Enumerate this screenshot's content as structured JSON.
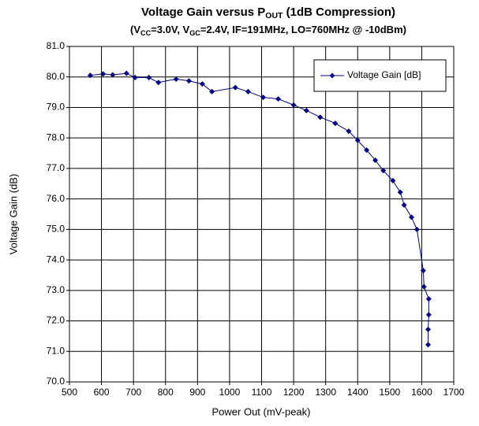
{
  "chart_data": {
    "type": "line",
    "title": [
      {
        "text": "Voltage Gain versus P"
      },
      {
        "text": "OUT",
        "sub": true
      },
      {
        "text": " (1dB Compression)"
      }
    ],
    "subtitle": [
      {
        "text": "(V"
      },
      {
        "text": "CC",
        "sub": true
      },
      {
        "text": "=3.0V, V"
      },
      {
        "text": "GC",
        "sub": true
      },
      {
        "text": "=2.4V, IF=191MHz, LO=760MHz @ -10dBm)"
      }
    ],
    "x_label": "Power Out (mV-peak)",
    "y_label": "Voltage Gain (dB)",
    "x": [
      565,
      605,
      635,
      678,
      705,
      748,
      778,
      833,
      873,
      915,
      945,
      1018,
      1058,
      1105,
      1152,
      1200,
      1240,
      1283,
      1330,
      1372,
      1400,
      1428,
      1455,
      1480,
      1510,
      1533,
      1545,
      1568,
      1585,
      1605,
      1607,
      1622,
      1622,
      1620,
      1620
    ],
    "series": [
      {
        "name": "Voltage Gain [dB]",
        "color": "#000080",
        "values": [
          80.05,
          80.1,
          80.07,
          80.12,
          79.98,
          79.98,
          79.82,
          79.93,
          79.87,
          79.77,
          79.52,
          79.65,
          79.52,
          79.33,
          79.28,
          79.08,
          78.9,
          78.68,
          78.48,
          78.22,
          77.92,
          77.6,
          77.27,
          76.93,
          76.6,
          76.22,
          75.8,
          75.4,
          75.0,
          73.65,
          73.12,
          72.72,
          72.2,
          71.72,
          71.22
        ]
      }
    ],
    "xlim": [
      500,
      1700
    ],
    "xticks": [
      500,
      600,
      700,
      800,
      900,
      1000,
      1100,
      1200,
      1300,
      1400,
      1500,
      1600,
      1700
    ],
    "ylim": [
      70,
      81
    ],
    "yticks": [
      {
        "value": 70,
        "label": "70.0"
      },
      {
        "value": 71,
        "label": "71.0"
      },
      {
        "value": 72,
        "label": "72.0"
      },
      {
        "value": 73,
        "label": "73.0"
      },
      {
        "value": 74,
        "label": "74.0"
      },
      {
        "value": 75,
        "label": "75.0"
      },
      {
        "value": 76,
        "label": "76.0"
      },
      {
        "value": 77,
        "label": "77.0"
      },
      {
        "value": 78,
        "label": "78.0"
      },
      {
        "value": 79,
        "label": "79.0"
      },
      {
        "value": 80,
        "label": "80.0"
      },
      {
        "value": 81,
        "label": "81.0"
      }
    ],
    "grid": true,
    "legend": "upper right"
  }
}
